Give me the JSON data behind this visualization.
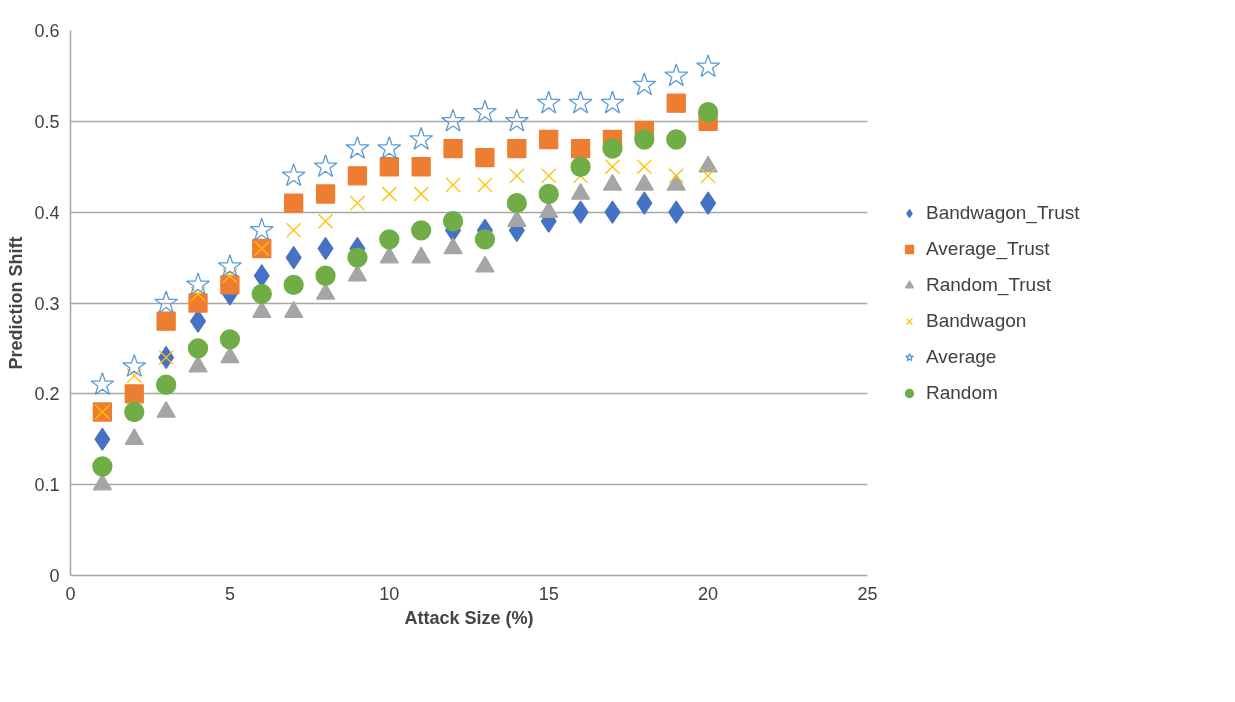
{
  "chart_data": {
    "type": "scatter",
    "xlabel": "Attack Size (%)",
    "ylabel": "Prediction Shift",
    "x": [
      1,
      2,
      3,
      4,
      5,
      6,
      7,
      8,
      9,
      10,
      11,
      12,
      13,
      14,
      15,
      16,
      17,
      18,
      19,
      20
    ],
    "series": [
      {
        "name": "Bandwagon_Trust",
        "color": "#4472c4",
        "marker": "diamond",
        "values": [
          0.15,
          null,
          0.24,
          0.28,
          0.31,
          0.33,
          0.35,
          0.36,
          0.36,
          null,
          null,
          0.38,
          0.38,
          0.38,
          0.39,
          0.4,
          0.4,
          0.41,
          0.4,
          0.41
        ]
      },
      {
        "name": "Average_Trust",
        "color": "#ed7d31",
        "marker": "square",
        "values": [
          0.18,
          0.2,
          0.28,
          0.3,
          0.32,
          0.36,
          0.41,
          0.42,
          0.44,
          0.45,
          0.45,
          0.47,
          0.46,
          0.47,
          0.48,
          0.47,
          0.48,
          0.49,
          0.52,
          0.5
        ]
      },
      {
        "name": "Random_Trust",
        "color": "#a5a5a5",
        "marker": "triangle",
        "values": [
          0.1,
          0.15,
          0.18,
          0.23,
          0.24,
          0.29,
          0.29,
          0.31,
          0.33,
          0.35,
          0.35,
          0.36,
          0.34,
          0.39,
          0.4,
          0.42,
          0.43,
          0.43,
          0.43,
          0.45
        ]
      },
      {
        "name": "Bandwagon",
        "color": "#ffc000",
        "marker": "cross",
        "values": [
          0.18,
          0.22,
          0.24,
          0.31,
          0.33,
          0.36,
          0.38,
          0.39,
          0.41,
          0.42,
          0.42,
          0.43,
          0.43,
          0.44,
          0.44,
          0.44,
          0.45,
          0.45,
          0.44,
          0.44
        ]
      },
      {
        "name": "Average",
        "color": "#5b9bd5",
        "marker": "star",
        "values": [
          0.21,
          0.23,
          0.3,
          0.32,
          0.34,
          0.38,
          0.44,
          0.45,
          0.47,
          0.47,
          0.48,
          0.5,
          0.51,
          0.5,
          0.52,
          0.52,
          0.52,
          0.54,
          0.55,
          0.56
        ]
      },
      {
        "name": "Random",
        "color": "#70ad47",
        "marker": "circle",
        "values": [
          0.12,
          0.18,
          0.21,
          0.25,
          0.26,
          0.31,
          0.32,
          0.33,
          0.35,
          0.37,
          0.38,
          0.39,
          0.37,
          0.41,
          0.42,
          0.45,
          0.47,
          0.48,
          0.48,
          0.51
        ]
      }
    ],
    "xlim": [
      0,
      25
    ],
    "xticks": [
      0,
      5,
      10,
      15,
      20,
      25
    ],
    "ylim": [
      0,
      0.6
    ],
    "yticks": [
      0,
      {
        "value": 0.1,
        "label": "0.1"
      },
      {
        "value": 0.2,
        "label": "0.2"
      },
      {
        "value": 0.3,
        "label": "0.3"
      },
      {
        "value": 0.4,
        "label": "0.4"
      },
      {
        "value": 0.5,
        "label": "0.5"
      },
      {
        "value": 0.6,
        "label": "0.6"
      }
    ],
    "grid": "y",
    "legend": "right"
  }
}
